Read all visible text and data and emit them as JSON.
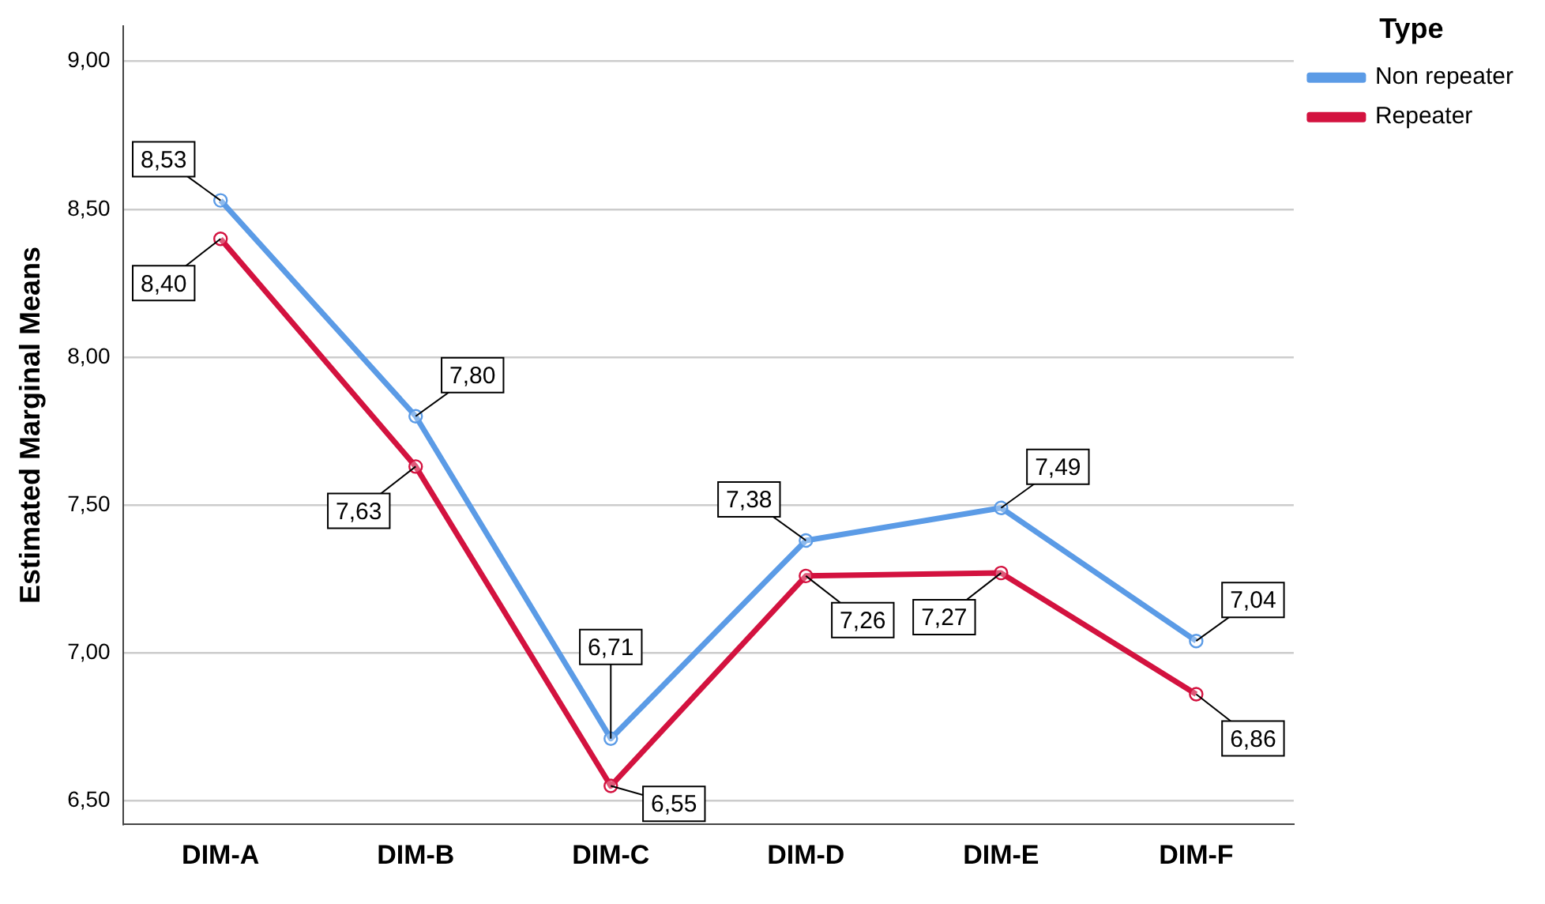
{
  "chart_data": {
    "type": "line",
    "ylabel": "Estimated Marginal Means",
    "legend_title": "Type",
    "legend": "top right",
    "grid": "y",
    "marker": "circle",
    "line_style": "solid",
    "categories": [
      "DIM-A",
      "DIM-B",
      "DIM-C",
      "DIM-D",
      "DIM-E",
      "DIM-F"
    ],
    "ylim": [
      6.42,
      9.12
    ],
    "yticks": [
      {
        "value": 6.5,
        "label": "6,50"
      },
      {
        "value": 7,
        "label": "7,00"
      },
      {
        "value": 7.5,
        "label": "7,50"
      },
      {
        "value": 8,
        "label": "8,00"
      },
      {
        "value": 8.5,
        "label": "8,50"
      },
      {
        "value": 9,
        "label": "9,00"
      }
    ],
    "series": [
      {
        "name": "Non repeater",
        "color": "#5b9be6",
        "values": [
          8.53,
          7.8,
          6.71,
          7.38,
          7.49,
          7.04
        ],
        "value_labels": [
          "8,53",
          "7,80",
          "6,71",
          "7,38",
          "7,49",
          "7,04"
        ]
      },
      {
        "name": "Repeater",
        "color": "#d3123f",
        "values": [
          8.4,
          7.63,
          6.55,
          7.26,
          7.27,
          6.86
        ],
        "value_labels": [
          "8,40",
          "7,63",
          "6,55",
          "7,26",
          "7,27",
          "6,86"
        ]
      }
    ]
  }
}
